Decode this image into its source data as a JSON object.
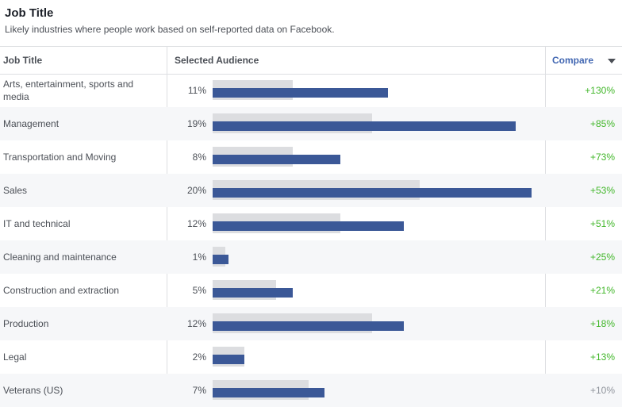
{
  "header": {
    "title": "Job Title",
    "subtitle": "Likely industries where people work based on self-reported data on Facebook."
  },
  "table": {
    "columns": {
      "job_title": "Job Title",
      "selected_audience": "Selected Audience",
      "compare": "Compare"
    },
    "rows": [
      {
        "label": "Arts, entertainment, sports and media",
        "pct": "11%",
        "audience_value": 11,
        "baseline_value": 5,
        "compare": "+130%"
      },
      {
        "label": "Management",
        "pct": "19%",
        "audience_value": 19,
        "baseline_value": 10,
        "compare": "+85%"
      },
      {
        "label": "Transportation and Moving",
        "pct": "8%",
        "audience_value": 8,
        "baseline_value": 5,
        "compare": "+73%"
      },
      {
        "label": "Sales",
        "pct": "20%",
        "audience_value": 20,
        "baseline_value": 13,
        "compare": "+53%"
      },
      {
        "label": "IT and technical",
        "pct": "12%",
        "audience_value": 12,
        "baseline_value": 8,
        "compare": "+51%"
      },
      {
        "label": "Cleaning and maintenance",
        "pct": "1%",
        "audience_value": 1,
        "baseline_value": 0.8,
        "compare": "+25%"
      },
      {
        "label": "Construction and extraction",
        "pct": "5%",
        "audience_value": 5,
        "baseline_value": 4,
        "compare": "+21%"
      },
      {
        "label": "Production",
        "pct": "12%",
        "audience_value": 12,
        "baseline_value": 10,
        "compare": "+18%"
      },
      {
        "label": "Legal",
        "pct": "2%",
        "audience_value": 2,
        "baseline_value": 2,
        "compare": "+13%"
      },
      {
        "label": "Veterans (US)",
        "pct": "7%",
        "audience_value": 7,
        "baseline_value": 6,
        "compare": "+10%"
      }
    ]
  },
  "colors": {
    "selected_bar": "#3b5897",
    "baseline_bar": "#dcdde0",
    "compare_positive": "#42b72a",
    "compare_neutral": "#90949c",
    "link": "#4267b2"
  }
}
